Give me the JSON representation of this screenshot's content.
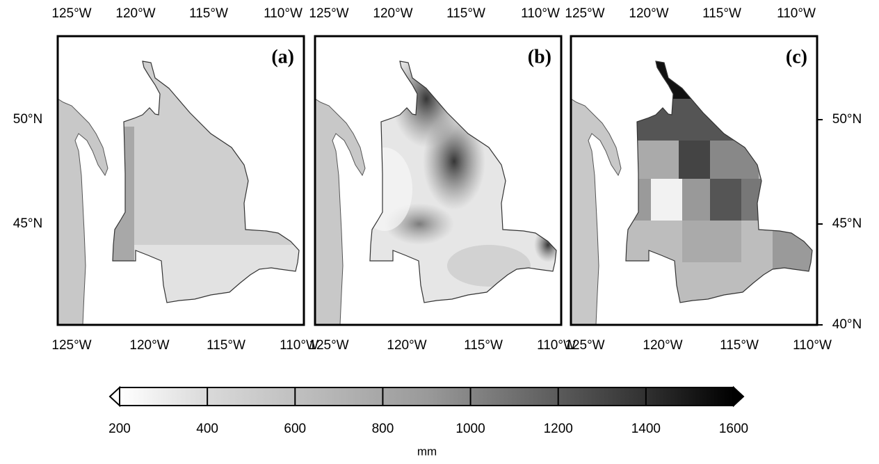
{
  "panels": [
    {
      "label": "(a)"
    },
    {
      "label": "(b)"
    },
    {
      "label": "(c)"
    }
  ],
  "lon_labels": [
    "125°W",
    "120°W",
    "115°W",
    "110°W"
  ],
  "lat_labels": [
    "50°N",
    "45°N",
    "40°N"
  ],
  "colorbar": {
    "range": [
      200,
      1600
    ],
    "ticks": [
      200,
      400,
      600,
      800,
      1000,
      1200,
      1400,
      1600
    ],
    "label": "mm"
  }
}
